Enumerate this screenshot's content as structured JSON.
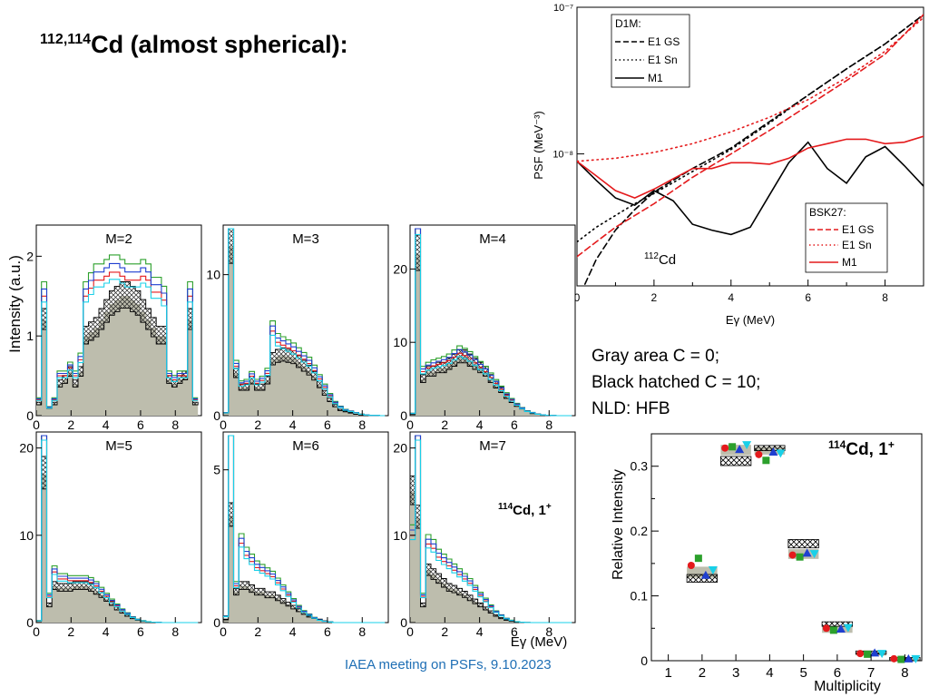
{
  "slide": {
    "title_mass": "112,114",
    "title_text": "Cd (almost spherical):",
    "notes": [
      "Gray area C = 0;",
      "Black hatched C = 10;",
      "NLD: HFB"
    ],
    "footer": "IAEA meeting on PSFs, 9.10.2023"
  },
  "colors": {
    "red": "#e41a1c",
    "green": "#2ca02c",
    "blue": "#1f3fd0",
    "cyan": "#19d0e8",
    "gray": "#bdbdad",
    "black": "#000000"
  },
  "chart_data": [
    {
      "type": "line",
      "title": "",
      "xlabel": "Eγ (MeV)",
      "ylabel": "PSF (MeV⁻³)",
      "xlim": [
        0,
        9
      ],
      "ylim_log": [
        -8.9,
        -7
      ],
      "yscale": "log",
      "x_ticks": [
        "0",
        "2",
        "4",
        "6",
        "8"
      ],
      "y_ticks": [
        "10⁻⁷",
        "10⁻⁸"
      ],
      "annotation": "112Cd",
      "legend_d1m": {
        "title": "D1M:",
        "items": [
          "E1 GS",
          "E1 Sn",
          "M1"
        ]
      },
      "legend_bsk": {
        "title": "BSK27:",
        "items": [
          "E1 GS",
          "E1 Sn",
          "M1"
        ]
      },
      "series": [
        {
          "name": "D1M E1 GS",
          "color": "black",
          "dash": "dashed",
          "x": [
            0.1,
            0.5,
            1,
            1.5,
            2,
            3,
            4,
            5,
            6,
            7,
            8,
            9
          ],
          "log_y": [
            -8.95,
            -8.72,
            -8.52,
            -8.38,
            -8.26,
            -8.1,
            -7.96,
            -7.78,
            -7.6,
            -7.42,
            -7.25,
            -7.05
          ]
        },
        {
          "name": "D1M E1 Sn",
          "color": "black",
          "dash": "dotted",
          "x": [
            0,
            0.5,
            1,
            1.5,
            2,
            3,
            4,
            5,
            6,
            7,
            8,
            9
          ],
          "log_y": [
            -8.6,
            -8.5,
            -8.42,
            -8.34,
            -8.27,
            -8.12,
            -7.97,
            -7.79,
            -7.6,
            -7.42,
            -7.25,
            -7.05
          ]
        },
        {
          "name": "D1M M1",
          "color": "black",
          "dash": "solid",
          "x": [
            0,
            0.5,
            1,
            1.5,
            2,
            2.5,
            3,
            3.5,
            4,
            4.5,
            5,
            5.5,
            6,
            6.5,
            7,
            7.5,
            8,
            8.5,
            9
          ],
          "log_y": [
            -8.05,
            -8.18,
            -8.3,
            -8.35,
            -8.25,
            -8.32,
            -8.48,
            -8.52,
            -8.55,
            -8.5,
            -8.28,
            -8.06,
            -7.92,
            -8.1,
            -8.2,
            -8.02,
            -7.95,
            -8.08,
            -8.22
          ]
        },
        {
          "name": "BSK27 E1 GS",
          "color": "red",
          "dash": "dashed",
          "x": [
            0,
            0.5,
            1,
            1.5,
            2,
            3,
            4,
            5,
            6,
            7,
            8,
            9
          ],
          "log_y": [
            -8.7,
            -8.6,
            -8.5,
            -8.42,
            -8.34,
            -8.16,
            -8.0,
            -7.84,
            -7.67,
            -7.5,
            -7.32,
            -7.05
          ]
        },
        {
          "name": "BSK27 E1 Sn",
          "color": "red",
          "dash": "dotted",
          "x": [
            0,
            1,
            2,
            3,
            4,
            5,
            6,
            7,
            8,
            9
          ],
          "log_y": [
            -8.05,
            -8.03,
            -7.99,
            -7.93,
            -7.85,
            -7.75,
            -7.63,
            -7.48,
            -7.3,
            -7.07
          ]
        },
        {
          "name": "BSK27 M1",
          "color": "red",
          "dash": "solid",
          "x": [
            0,
            0.5,
            1,
            1.5,
            2,
            2.5,
            3,
            3.5,
            4,
            4.5,
            5,
            5.5,
            6,
            6.5,
            7,
            7.5,
            8,
            8.5,
            9
          ],
          "log_y": [
            -8.05,
            -8.15,
            -8.25,
            -8.3,
            -8.24,
            -8.17,
            -8.1,
            -8.1,
            -8.06,
            -8.06,
            -8.07,
            -8.03,
            -7.96,
            -7.93,
            -7.9,
            -7.9,
            -7.93,
            -7.92,
            -7.88
          ]
        }
      ]
    },
    {
      "type": "bar",
      "title": "114Cd, 1+",
      "xlabel": "Multiplicity",
      "ylabel": "Relative Intensity",
      "xlim": [
        0.5,
        8.5
      ],
      "ylim": [
        0,
        0.35
      ],
      "x_ticks": [
        "1",
        "2",
        "3",
        "4",
        "5",
        "6",
        "7",
        "8"
      ],
      "y_ticks": [
        "0",
        "0.1",
        "0.2",
        "0.3"
      ],
      "gray_band_C0": [
        {
          "m": 2,
          "lo": 0.128,
          "hi": 0.145
        },
        {
          "m": 3,
          "lo": 0.317,
          "hi": 0.333
        },
        {
          "m": 4,
          "lo": 0.318,
          "hi": 0.33
        },
        {
          "m": 5,
          "lo": 0.157,
          "hi": 0.172
        },
        {
          "m": 6,
          "lo": 0.043,
          "hi": 0.054
        },
        {
          "m": 7,
          "lo": 0.008,
          "hi": 0.013
        },
        {
          "m": 8,
          "lo": 0.0,
          "hi": 0.004
        }
      ],
      "hatched_C10": [
        {
          "m": 2,
          "lo": 0.121,
          "hi": 0.133
        },
        {
          "m": 3,
          "lo": 0.301,
          "hi": 0.315
        },
        {
          "m": 4,
          "lo": 0.324,
          "hi": 0.332
        },
        {
          "m": 5,
          "lo": 0.174,
          "hi": 0.187
        },
        {
          "m": 6,
          "lo": 0.053,
          "hi": 0.06
        },
        {
          "m": 7,
          "lo": 0.01,
          "hi": 0.015
        },
        {
          "m": 8,
          "lo": 0.001,
          "hi": 0.005
        }
      ],
      "points": [
        {
          "m": 2,
          "v": [
            0.147,
            0.158,
            0.132,
            0.14
          ],
          "colors": [
            "red",
            "green",
            "blue",
            "cyan"
          ]
        },
        {
          "m": 3,
          "v": [
            0.328,
            0.33,
            0.326,
            0.333
          ],
          "colors": [
            "red",
            "green",
            "blue",
            "cyan"
          ]
        },
        {
          "m": 4,
          "v": [
            0.318,
            0.309,
            0.322,
            0.32
          ],
          "colors": [
            "red",
            "green",
            "blue",
            "cyan"
          ]
        },
        {
          "m": 5,
          "v": [
            0.163,
            0.16,
            0.166,
            0.165
          ],
          "colors": [
            "red",
            "green",
            "blue",
            "cyan"
          ]
        },
        {
          "m": 6,
          "v": [
            0.05,
            0.047,
            0.049,
            0.051
          ],
          "colors": [
            "red",
            "green",
            "blue",
            "cyan"
          ]
        },
        {
          "m": 7,
          "v": [
            0.011,
            0.01,
            0.012,
            0.011
          ],
          "colors": [
            "red",
            "green",
            "blue",
            "cyan"
          ]
        },
        {
          "m": 8,
          "v": [
            0.003,
            0.002,
            0.003,
            0.003
          ],
          "colors": [
            "red",
            "green",
            "blue",
            "cyan"
          ]
        }
      ]
    },
    {
      "type": "bar",
      "subtype": "histogram-grid",
      "title": "",
      "ylabel": "Intensity (a.u.)",
      "xlabel": "Eγ (MeV)",
      "xlim": [
        0,
        9.5
      ],
      "x_ticks": [
        "0",
        "2",
        "4",
        "6",
        "8"
      ],
      "annotation": "114Cd, 1+",
      "panels": [
        {
          "label": "M=2",
          "ymax": 2.3,
          "y_ticks": [
            "0",
            "1",
            "2"
          ],
          "y_tick_vals": [
            0,
            1,
            2
          ],
          "gray": [
            0.15,
            1.2,
            0.1,
            0.15,
            0.4,
            0.45,
            0.55,
            0.4,
            0.55,
            1.0,
            1.05,
            1.1,
            1.2,
            1.3,
            1.4,
            1.45,
            1.5,
            1.5,
            1.45,
            1.4,
            1.3,
            1.2,
            1.1,
            1.0,
            1.0,
            0.45,
            0.4,
            0.45,
            0.5,
            1.2,
            0.15
          ],
          "curve": [
            0.2,
            1.5,
            0.1,
            0.2,
            0.5,
            0.5,
            0.6,
            0.5,
            0.7,
            1.5,
            1.6,
            1.7,
            1.7,
            1.75,
            1.8,
            1.8,
            1.75,
            1.7,
            1.7,
            1.7,
            1.75,
            1.7,
            1.55,
            1.55,
            1.45,
            0.5,
            0.45,
            0.5,
            0.5,
            1.5,
            0.2
          ]
        },
        {
          "label": "M=3",
          "ymax": 13,
          "y_ticks": [
            "0",
            "10"
          ],
          "y_tick_vals": [
            0,
            10
          ],
          "gray": [
            0.2,
            12,
            3,
            2,
            2,
            2.5,
            2,
            2,
            2.5,
            4,
            4.2,
            4.3,
            4.2,
            4.1,
            3.8,
            3.5,
            3.2,
            2.8,
            2.2,
            1.6,
            1.1,
            0.7,
            0.4,
            0.3,
            0.2,
            0.1,
            0.05,
            0.05,
            0.02,
            0.02,
            0.0
          ],
          "curve": [
            0.2,
            14,
            3.5,
            2.2,
            2.3,
            2.8,
            2.3,
            2.5,
            3,
            6,
            5.2,
            5,
            4.8,
            4.6,
            4.3,
            4,
            3.7,
            3.2,
            2.6,
            2,
            1.4,
            0.9,
            0.6,
            0.4,
            0.3,
            0.2,
            0.1,
            0.05,
            0.02,
            0.02,
            0.0
          ]
        },
        {
          "label": "M=4",
          "ymax": 25,
          "y_ticks": [
            "0",
            "10",
            "20"
          ],
          "y_tick_vals": [
            0,
            10,
            20
          ],
          "gray": [
            0.2,
            22,
            5,
            6,
            6,
            6.5,
            6.5,
            7,
            7.5,
            8,
            8,
            7.5,
            7,
            6.5,
            6,
            5,
            4.2,
            3.5,
            2.6,
            2,
            1.4,
            1,
            0.6,
            0.3,
            0.2,
            0.1,
            0.05,
            0.02,
            0.0,
            0.0,
            0.0
          ],
          "curve": [
            0.3,
            26,
            6,
            6.5,
            6.8,
            7,
            7.2,
            7.5,
            8,
            8.5,
            8.2,
            7.8,
            7.2,
            6.6,
            6,
            5.2,
            4.4,
            3.6,
            2.8,
            2.1,
            1.5,
            1,
            0.6,
            0.4,
            0.2,
            0.1,
            0.05,
            0.02,
            0.0,
            0.0,
            0.0
          ]
        },
        {
          "label": "M=5",
          "ymax": 21,
          "y_ticks": [
            "0",
            "10",
            "20"
          ],
          "y_tick_vals": [
            0,
            10,
            20
          ],
          "gray": [
            0.2,
            17,
            2,
            4.2,
            4,
            4,
            4,
            4.2,
            4.2,
            4.2,
            4,
            3.6,
            3.2,
            2.7,
            2.2,
            1.6,
            1.2,
            0.8,
            0.5,
            0.3,
            0.15,
            0.08,
            0.04,
            0.02,
            0.0,
            0.0,
            0.0,
            0.0,
            0.0,
            0.0,
            0.0
          ],
          "curve": [
            0.2,
            22,
            3,
            5.8,
            5,
            5,
            4.8,
            4.8,
            4.8,
            4.8,
            4.6,
            4.2,
            3.6,
            3,
            2.4,
            1.9,
            1.4,
            1,
            0.6,
            0.35,
            0.2,
            0.1,
            0.05,
            0.02,
            0.0,
            0.0,
            0.0,
            0.0,
            0.0,
            0.0,
            0.0
          ]
        },
        {
          "label": "M=6",
          "ymax": 6,
          "y_ticks": [
            "0",
            "5"
          ],
          "y_tick_vals": [
            0,
            5
          ],
          "gray": [
            0.1,
            3.5,
            1,
            1.2,
            1.2,
            1.1,
            1,
            1,
            0.9,
            0.9,
            0.8,
            0.7,
            0.6,
            0.5,
            0.4,
            0.3,
            0.2,
            0.15,
            0.1,
            0.05,
            0.02,
            0.0,
            0.0,
            0.0,
            0.0,
            0.0,
            0.0,
            0.0,
            0.0,
            0.0,
            0.0
          ],
          "curve": [
            0.2,
            6.5,
            1.2,
            2.6,
            2.2,
            2,
            1.8,
            1.7,
            1.6,
            1.5,
            1.3,
            1.1,
            0.9,
            0.7,
            0.5,
            0.35,
            0.25,
            0.15,
            0.08,
            0.04,
            0.02,
            0.0,
            0.0,
            0.0,
            0.0,
            0.0,
            0.0,
            0.0,
            0.0,
            0.0,
            0.0
          ]
        },
        {
          "label": "M=7",
          "ymax": 21,
          "y_ticks": [
            "0",
            "10",
            "20"
          ],
          "y_tick_vals": [
            0,
            10,
            20
          ],
          "gray": [
            15,
            12,
            2,
            6,
            5.5,
            5,
            4.5,
            4,
            3.8,
            3.5,
            3.2,
            2.8,
            2.4,
            2,
            1.6,
            1.2,
            0.8,
            0.5,
            0.3,
            0.15,
            0.06,
            0.02,
            0.0,
            0.0,
            0.0,
            0.0,
            0.0,
            0.0,
            0.0,
            0.0,
            0.0
          ],
          "curve": [
            10,
            22,
            3,
            9,
            8.5,
            7.5,
            7,
            6.5,
            6,
            5.5,
            5,
            4.5,
            3.8,
            3.1,
            2.5,
            1.8,
            1.2,
            0.8,
            0.45,
            0.25,
            0.1,
            0.04,
            0.01,
            0.0,
            0.0,
            0.0,
            0.0,
            0.0,
            0.0,
            0.0,
            0.0
          ]
        }
      ]
    }
  ]
}
